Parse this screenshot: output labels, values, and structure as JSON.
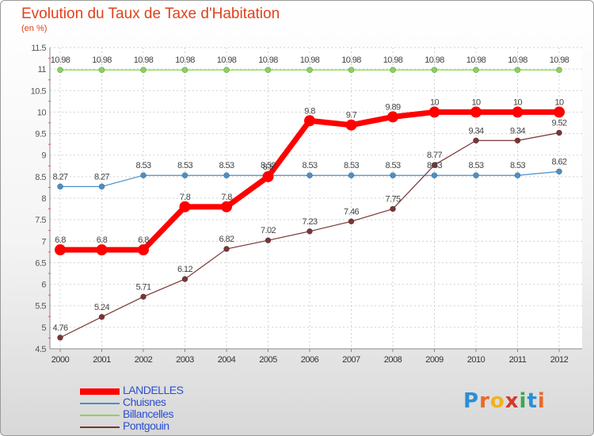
{
  "chart_data": {
    "type": "line",
    "title": "Evolution du Taux de Taxe d'Habitation",
    "subtitle": "(en %)",
    "x": [
      "2000",
      "2001",
      "2002",
      "2003",
      "2004",
      "2005",
      "2006",
      "2007",
      "2008",
      "2009",
      "2010",
      "2011",
      "2012"
    ],
    "ylim": [
      4.5,
      11.5
    ],
    "yticks": [
      "4.5",
      "5",
      "5.5",
      "6",
      "6.5",
      "7",
      "7.5",
      "8",
      "8.5",
      "9",
      "9.5",
      "10",
      "10.5",
      "11",
      "11.5"
    ],
    "grid": true,
    "legend_position": "bottom-left",
    "series": [
      {
        "name": "LANDELLES",
        "color": "#ff0000",
        "values": [
          6.8,
          6.8,
          6.8,
          7.8,
          7.8,
          8.5,
          9.8,
          9.7,
          9.89,
          10,
          10,
          10,
          10
        ],
        "labels": [
          "6.8",
          "6.8",
          "6.8",
          "7.8",
          "7.8",
          "8.5",
          "9.8",
          "9.7",
          "9.89",
          "10",
          "10",
          "10",
          "10"
        ]
      },
      {
        "name": "Chuisnes",
        "color": "#4a90c8",
        "values": [
          8.27,
          8.27,
          8.53,
          8.53,
          8.53,
          8.53,
          8.53,
          8.53,
          8.53,
          8.53,
          8.53,
          8.53,
          8.62
        ],
        "labels": [
          "8.27",
          "8.27",
          "8.53",
          "8.53",
          "8.53",
          "8.53",
          "8.53",
          "8.53",
          "8.53",
          "8.53",
          "8.53",
          "8.53",
          "8.62"
        ]
      },
      {
        "name": "Billancelles",
        "color": "#88d45a",
        "values": [
          10.98,
          10.98,
          10.98,
          10.98,
          10.98,
          10.98,
          10.98,
          10.98,
          10.98,
          10.98,
          10.98,
          10.98,
          10.98
        ],
        "labels": [
          "10.98",
          "10.98",
          "10.98",
          "10.98",
          "10.98",
          "10.98",
          "10.98",
          "10.98",
          "10.98",
          "10.98",
          "10.98",
          "10.98",
          "10.98"
        ]
      },
      {
        "name": "Pontgouin",
        "color": "#7a3434",
        "values": [
          4.76,
          5.24,
          5.71,
          6.12,
          6.82,
          7.02,
          7.23,
          7.46,
          7.75,
          8.77,
          9.34,
          9.34,
          9.52
        ],
        "labels": [
          "4.76",
          "5.24",
          "5.71",
          "6.12",
          "6.82",
          "7.02",
          "7.23",
          "7.46",
          "7.75",
          "8.77",
          "9.34",
          "9.34",
          "9.52"
        ]
      }
    ]
  },
  "logo": {
    "text": "Proxiti",
    "colors": [
      "#2b8ed6",
      "#e8692a",
      "#f2b21c",
      "#d33a2c",
      "#3aa84f",
      "#2b8ed6",
      "#e8692a"
    ]
  }
}
